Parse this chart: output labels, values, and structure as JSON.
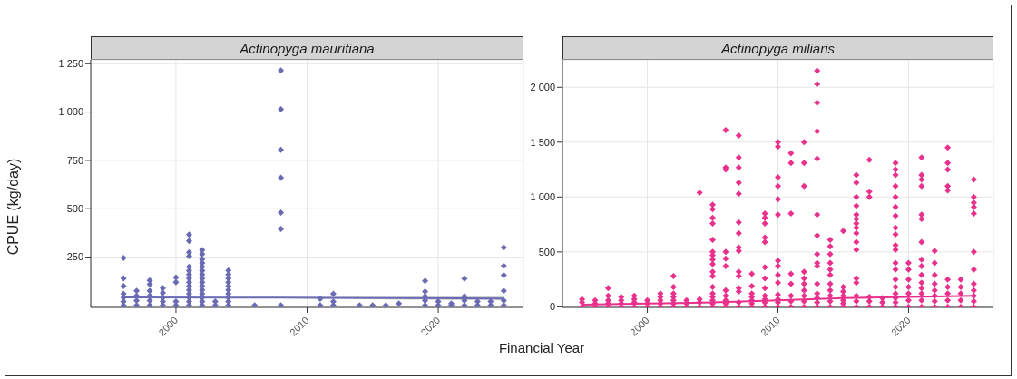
{
  "chart_data": [
    {
      "type": "scatter",
      "title": "Actinopyga mauritiana",
      "ylabel": "CPUE (kg/day)",
      "xlabel": "Financial Year",
      "xlim": [
        1993.5,
        2026.5
      ],
      "xticks": [
        2000,
        2010,
        2020
      ],
      "ylim": [
        -10,
        1270
      ],
      "yticks": [
        250,
        500,
        750,
        {
          "value": 1000,
          "label": "1 000"
        },
        {
          "value": 1250,
          "label": "1 250"
        }
      ],
      "grid": true,
      "series": [
        {
          "marker": "diamond",
          "color": "#6b6bb5",
          "x": [
            1996,
            1996,
            1996,
            1996,
            1996,
            1996,
            1996,
            1997,
            1997,
            1997,
            1997,
            1998,
            1998,
            1998,
            1998,
            1998,
            1998,
            1999,
            1999,
            1999,
            1999,
            1999,
            2000,
            2000,
            2000,
            2000,
            2001,
            2001,
            2001,
            2001,
            2001,
            2001,
            2001,
            2001,
            2001,
            2001,
            2001,
            2001,
            2001,
            2001,
            2001,
            2002,
            2002,
            2002,
            2002,
            2002,
            2002,
            2002,
            2002,
            2002,
            2002,
            2002,
            2002,
            2002,
            2002,
            2002,
            2003,
            2003,
            2004,
            2004,
            2004,
            2004,
            2004,
            2004,
            2004,
            2004,
            2004,
            2004,
            2006,
            2008,
            2008,
            2008,
            2008,
            2008,
            2008,
            2008,
            2011,
            2011,
            2012,
            2012,
            2012,
            2014,
            2015,
            2016,
            2017,
            2019,
            2019,
            2019,
            2019,
            2019,
            2020,
            2020,
            2021,
            2021,
            2022,
            2022,
            2022,
            2022,
            2023,
            2023,
            2024,
            2024,
            2025,
            2025,
            2025,
            2025,
            2025,
            2025
          ],
          "values": [
            245,
            140,
            100,
            60,
            40,
            20,
            0,
            75,
            50,
            25,
            0,
            130,
            110,
            75,
            50,
            25,
            0,
            90,
            65,
            40,
            20,
            0,
            145,
            120,
            20,
            0,
            366,
            334,
            275,
            255,
            200,
            180,
            160,
            140,
            120,
            100,
            80,
            60,
            40,
            20,
            0,
            286,
            265,
            240,
            220,
            200,
            180,
            160,
            140,
            120,
            100,
            80,
            60,
            40,
            20,
            0,
            20,
            0,
            181,
            160,
            140,
            120,
            100,
            80,
            60,
            40,
            20,
            0,
            0,
            1215,
            1015,
            805,
            660,
            480,
            395,
            0,
            35,
            0,
            60,
            20,
            0,
            0,
            0,
            0,
            10,
            127,
            72,
            48,
            25,
            0,
            20,
            0,
            10,
            0,
            139,
            48,
            25,
            0,
            20,
            0,
            20,
            0,
            299,
            205,
            156,
            75,
            25,
            0
          ]
        },
        {
          "type": "line",
          "marker": "none",
          "color": "#6b6bb5",
          "x": [
            1996,
            2008,
            2016,
            2025
          ],
          "values": [
            42,
            40,
            38,
            36
          ],
          "lower": [
            40,
            37,
            31,
            26
          ],
          "upper": [
            44,
            43,
            45,
            47
          ]
        }
      ]
    },
    {
      "type": "scatter",
      "title": "Actinopyga miliaris",
      "xlim": [
        1993.5,
        2026.5
      ],
      "xticks": [
        2000,
        2010,
        2020
      ],
      "ylim": [
        -5,
        2250
      ],
      "yticks": [
        0,
        500,
        {
          "value": 1000,
          "label": "1 000"
        },
        {
          "value": 1500,
          "label": "1 500"
        },
        {
          "value": 2000,
          "label": "2 000"
        }
      ],
      "grid": true,
      "series": [
        {
          "marker": "diamond",
          "color": "#e8308c",
          "x": [
            1995,
            1995,
            1995,
            1996,
            1996,
            1996,
            1997,
            1997,
            1997,
            1997,
            1997,
            1998,
            1998,
            1998,
            1998,
            1999,
            1999,
            1999,
            1999,
            2000,
            2000,
            2000,
            2001,
            2001,
            2001,
            2001,
            2001,
            2002,
            2002,
            2002,
            2002,
            2002,
            2002,
            2002,
            2003,
            2003,
            2003,
            2004,
            2004,
            2004,
            2004,
            2005,
            2005,
            2005,
            2005,
            2005,
            2005,
            2005,
            2005,
            2005,
            2005,
            2005,
            2005,
            2005,
            2005,
            2005,
            2005,
            2005,
            2006,
            2006,
            2006,
            2006,
            2006,
            2006,
            2006,
            2006,
            2006,
            2006,
            2006,
            2007,
            2007,
            2007,
            2007,
            2007,
            2007,
            2007,
            2007,
            2007,
            2007,
            2007,
            2007,
            2007,
            2007,
            2007,
            2008,
            2008,
            2008,
            2008,
            2008,
            2008,
            2008,
            2009,
            2009,
            2009,
            2009,
            2009,
            2009,
            2009,
            2009,
            2009,
            2009,
            2009,
            2009,
            2010,
            2010,
            2010,
            2010,
            2010,
            2010,
            2010,
            2010,
            2010,
            2010,
            2010,
            2010,
            2010,
            2010,
            2011,
            2011,
            2011,
            2011,
            2011,
            2011,
            2011,
            2011,
            2012,
            2012,
            2012,
            2012,
            2012,
            2012,
            2012,
            2012,
            2012,
            2012,
            2013,
            2013,
            2013,
            2013,
            2013,
            2013,
            2013,
            2013,
            2013,
            2013,
            2013,
            2013,
            2013,
            2013,
            2013,
            2014,
            2014,
            2014,
            2014,
            2014,
            2014,
            2014,
            2014,
            2014,
            2014,
            2014,
            2015,
            2015,
            2015,
            2015,
            2015,
            2015,
            2015,
            2016,
            2016,
            2016,
            2016,
            2016,
            2016,
            2016,
            2016,
            2016,
            2016,
            2016,
            2016,
            2016,
            2016,
            2016,
            2016,
            2017,
            2017,
            2017,
            2017,
            2017,
            2017,
            2018,
            2018,
            2018,
            2019,
            2019,
            2019,
            2019,
            2019,
            2019,
            2019,
            2019,
            2019,
            2019,
            2019,
            2019,
            2019,
            2019,
            2019,
            2019,
            2019,
            2019,
            2019,
            2020,
            2020,
            2020,
            2020,
            2020,
            2020,
            2020,
            2021,
            2021,
            2021,
            2021,
            2021,
            2021,
            2021,
            2021,
            2021,
            2021,
            2021,
            2021,
            2021,
            2021,
            2021,
            2022,
            2022,
            2022,
            2022,
            2022,
            2022,
            2022,
            2022,
            2023,
            2023,
            2023,
            2023,
            2023,
            2023,
            2023,
            2023,
            2023,
            2023,
            2024,
            2024,
            2024,
            2024,
            2024,
            2025,
            2025,
            2025,
            2025,
            2025,
            2025,
            2025,
            2025,
            2025,
            2025,
            2025,
            2025
          ],
          "values": [
            70,
            40,
            0,
            60,
            30,
            0,
            170,
            100,
            60,
            30,
            0,
            90,
            60,
            30,
            0,
            100,
            70,
            40,
            0,
            60,
            30,
            0,
            120,
            90,
            60,
            30,
            0,
            280,
            180,
            120,
            90,
            60,
            30,
            0,
            60,
            30,
            0,
            1040,
            70,
            40,
            0,
            930,
            890,
            810,
            760,
            610,
            500,
            470,
            430,
            390,
            320,
            280,
            180,
            120,
            90,
            60,
            30,
            0,
            1610,
            1270,
            1250,
            500,
            440,
            370,
            150,
            100,
            60,
            30,
            0,
            1560,
            1360,
            1270,
            1130,
            1030,
            770,
            670,
            540,
            510,
            320,
            280,
            170,
            140,
            40,
            0,
            300,
            190,
            120,
            90,
            60,
            30,
            0,
            850,
            810,
            760,
            630,
            590,
            360,
            260,
            170,
            100,
            70,
            40,
            0,
            1500,
            1460,
            1180,
            1100,
            980,
            840,
            420,
            370,
            290,
            220,
            110,
            70,
            40,
            0,
            1400,
            1310,
            850,
            300,
            210,
            100,
            50,
            0,
            1500,
            1310,
            1100,
            320,
            260,
            210,
            150,
            100,
            50,
            0,
            2150,
            2030,
            1860,
            1600,
            1350,
            840,
            650,
            480,
            400,
            370,
            210,
            120,
            80,
            40,
            0,
            610,
            550,
            480,
            400,
            340,
            290,
            210,
            150,
            100,
            50,
            0,
            690,
            180,
            140,
            100,
            60,
            30,
            0,
            1200,
            1130,
            1000,
            920,
            840,
            800,
            760,
            720,
            670,
            590,
            520,
            260,
            220,
            100,
            50,
            0,
            1340,
            1050,
            1000,
            90,
            50,
            0,
            80,
            40,
            0,
            1310,
            1250,
            1200,
            1100,
            1000,
            910,
            830,
            720,
            660,
            560,
            520,
            400,
            340,
            250,
            180,
            120,
            80,
            40,
            0,
            400,
            340,
            250,
            180,
            120,
            60,
            0,
            1360,
            1200,
            1160,
            1100,
            840,
            800,
            590,
            430,
            370,
            290,
            220,
            170,
            120,
            60,
            0,
            510,
            400,
            290,
            210,
            150,
            100,
            50,
            0,
            1450,
            1310,
            1250,
            1100,
            1060,
            250,
            180,
            120,
            60,
            0,
            250,
            180,
            120,
            60,
            0,
            1160,
            1000,
            950,
            910,
            850,
            500,
            340,
            210,
            150,
            100,
            50,
            0
          ]
        },
        {
          "type": "line",
          "marker": "none",
          "color": "#e8308c",
          "x": [
            1995,
            2000,
            2005,
            2010,
            2015,
            2020,
            2025
          ],
          "values": [
            20,
            30,
            40,
            60,
            80,
            90,
            100
          ]
        }
      ]
    }
  ]
}
